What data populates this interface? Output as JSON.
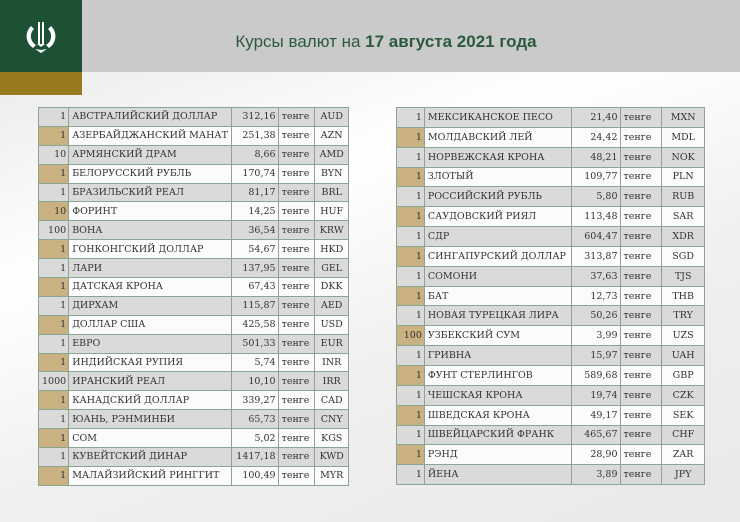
{
  "header": {
    "title_prefix": "Курсы валют на ",
    "title_date": "17 августа 2021 года",
    "logo": "national-bank-emblem"
  },
  "colors": {
    "green": "#1d5133",
    "gold": "#9a7a1f",
    "tan": "#c9b182",
    "gray_row": "#dadada"
  },
  "left_table": [
    {
      "nominal": "1",
      "name": "АВСТРАЛИЙСКИЙ ДОЛЛАР",
      "rate": "312,16",
      "unit": "тенге",
      "code": "AUD"
    },
    {
      "nominal": "1",
      "name": "АЗЕРБАЙДЖАНСКИЙ МАНАТ",
      "rate": "251,38",
      "unit": "тенге",
      "code": "AZN"
    },
    {
      "nominal": "10",
      "name": "АРМЯНСКИЙ  ДРАМ",
      "rate": "8,66",
      "unit": "тенге",
      "code": "AMD"
    },
    {
      "nominal": "1",
      "name": "БЕЛОРУССКИЙ РУБЛЬ",
      "rate": "170,74",
      "unit": "тенге",
      "code": "BYN"
    },
    {
      "nominal": "1",
      "name": "БРАЗИЛЬСКИЙ РЕАЛ",
      "rate": "81,17",
      "unit": "тенге",
      "code": "BRL"
    },
    {
      "nominal": "10",
      "name": "ФОРИНТ",
      "rate": "14,25",
      "unit": "тенге",
      "code": "HUF"
    },
    {
      "nominal": "100",
      "name": "ВОНА",
      "rate": "36,54",
      "unit": "тенге",
      "code": "KRW"
    },
    {
      "nominal": "1",
      "name": "ГОНКОНГСКИЙ ДОЛЛАР",
      "rate": "54,67",
      "unit": "тенге",
      "code": "HKD"
    },
    {
      "nominal": "1",
      "name": "ЛАРИ",
      "rate": "137,95",
      "unit": "тенге",
      "code": "GEL"
    },
    {
      "nominal": "1",
      "name": "ДАТСКАЯ КРОНА",
      "rate": "67,43",
      "unit": "тенге",
      "code": "DKK"
    },
    {
      "nominal": "1",
      "name": "ДИРХАМ",
      "rate": "115,87",
      "unit": "тенге",
      "code": "AED"
    },
    {
      "nominal": "1",
      "name": "ДОЛЛАР США",
      "rate": "425,58",
      "unit": "тенге",
      "code": "USD"
    },
    {
      "nominal": "1",
      "name": "ЕВРО",
      "rate": "501,33",
      "unit": "тенге",
      "code": "EUR"
    },
    {
      "nominal": "1",
      "name": "ИНДИЙСКАЯ РУПИЯ",
      "rate": "5,74",
      "unit": "тенге",
      "code": "INR"
    },
    {
      "nominal": "1000",
      "name": "ИРАНСКИЙ РЕАЛ",
      "rate": "10,10",
      "unit": "тенге",
      "code": "IRR"
    },
    {
      "nominal": "1",
      "name": "КАНАДСКИЙ ДОЛЛАР",
      "rate": "339,27",
      "unit": "тенге",
      "code": "CAD"
    },
    {
      "nominal": "1",
      "name": "ЮАНЬ, РЭНМИНБИ",
      "rate": "65,73",
      "unit": "тенге",
      "code": "CNY"
    },
    {
      "nominal": "1",
      "name": "СОМ",
      "rate": "5,02",
      "unit": "тенге",
      "code": "KGS"
    },
    {
      "nominal": "1",
      "name": "КУВЕЙТСКИЙ ДИНАР",
      "rate": "1417,18",
      "unit": "тенге",
      "code": "KWD"
    },
    {
      "nominal": "1",
      "name": "МАЛАЙЗИЙСКИЙ РИНГГИТ",
      "rate": "100,49",
      "unit": "тенге",
      "code": "MYR"
    }
  ],
  "right_table": [
    {
      "nominal": "1",
      "name": "МЕКСИКАНСКОЕ ПЕСО",
      "rate": "21,40",
      "unit": "тенге",
      "code": "MXN"
    },
    {
      "nominal": "1",
      "name": "МОЛДАВСКИЙ ЛЕЙ",
      "rate": "24,42",
      "unit": "тенге",
      "code": "MDL"
    },
    {
      "nominal": "1",
      "name": "НОРВЕЖСКАЯ КРОНА",
      "rate": "48,21",
      "unit": "тенге",
      "code": "NOK"
    },
    {
      "nominal": "1",
      "name": "ЗЛОТЫЙ",
      "rate": "109,77",
      "unit": "тенге",
      "code": "PLN"
    },
    {
      "nominal": "1",
      "name": "РОССИЙСКИЙ РУБЛЬ",
      "rate": "5,80",
      "unit": "тенге",
      "code": "RUB"
    },
    {
      "nominal": "1",
      "name": "САУДОВСКИЙ РИЯЛ",
      "rate": "113,48",
      "unit": "тенге",
      "code": "SAR"
    },
    {
      "nominal": "1",
      "name": "СДР",
      "rate": "604,47",
      "unit": "тенге",
      "code": "XDR"
    },
    {
      "nominal": "1",
      "name": "СИНГАПУРСКИЙ ДОЛЛАР",
      "rate": "313,87",
      "unit": "тенге",
      "code": "SGD"
    },
    {
      "nominal": "1",
      "name": "СОМОНИ",
      "rate": "37,63",
      "unit": "тенге",
      "code": "TJS"
    },
    {
      "nominal": "1",
      "name": "БАТ",
      "rate": "12,73",
      "unit": "тенге",
      "code": "THB"
    },
    {
      "nominal": "1",
      "name": "НОВАЯ ТУРЕЦКАЯ ЛИРА",
      "rate": "50,26",
      "unit": "тенге",
      "code": "TRY"
    },
    {
      "nominal": "100",
      "name": "УЗБЕКСКИЙ СУМ",
      "rate": "3,99",
      "unit": "тенге",
      "code": "UZS"
    },
    {
      "nominal": "1",
      "name": "ГРИВНА",
      "rate": "15,97",
      "unit": "тенге",
      "code": "UAH"
    },
    {
      "nominal": "1",
      "name": "ФУНТ СТЕРЛИНГОВ",
      "rate": "589,68",
      "unit": "тенге",
      "code": "GBP"
    },
    {
      "nominal": "1",
      "name": "ЧЕШСКАЯ КРОНА",
      "rate": "19,74",
      "unit": "тенге",
      "code": "CZK"
    },
    {
      "nominal": "1",
      "name": "ШВЕДСКАЯ КРОНА",
      "rate": "49,17",
      "unit": "тенге",
      "code": "SEK"
    },
    {
      "nominal": "1",
      "name": "ШВЕЙЦАРСКИЙ ФРАНК",
      "rate": "465,67",
      "unit": "тенге",
      "code": "CHF"
    },
    {
      "nominal": "1",
      "name": "РЭНД",
      "rate": "28,90",
      "unit": "тенге",
      "code": "ZAR"
    },
    {
      "nominal": "1",
      "name": "ЙЕНА",
      "rate": "3,89",
      "unit": "тенге",
      "code": "JPY"
    }
  ]
}
